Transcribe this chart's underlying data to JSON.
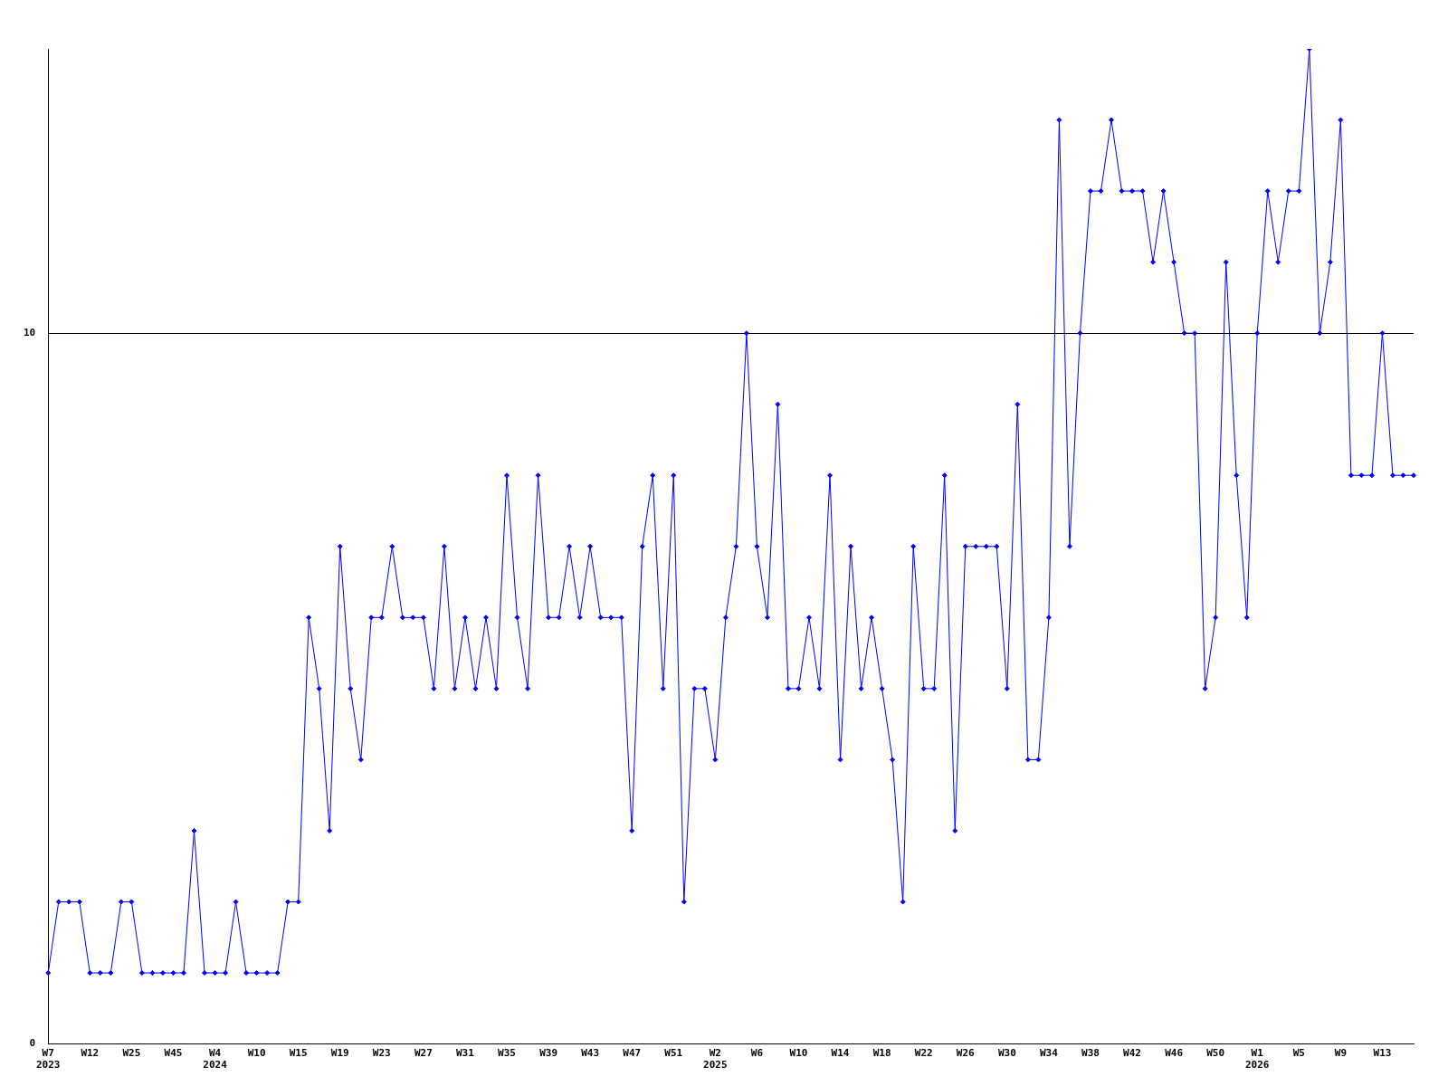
{
  "chart_data": {
    "type": "line",
    "categories": [
      "W7\n2023",
      null,
      null,
      null,
      "W12",
      null,
      null,
      null,
      "W25",
      null,
      null,
      null,
      "W45",
      null,
      null,
      null,
      "W4\n2024",
      null,
      null,
      null,
      "W10",
      null,
      null,
      null,
      "W15",
      null,
      null,
      null,
      "W19",
      null,
      null,
      null,
      "W23",
      null,
      null,
      null,
      "W27",
      null,
      null,
      null,
      "W31",
      null,
      null,
      null,
      "W35",
      null,
      null,
      null,
      "W39",
      null,
      null,
      null,
      "W43",
      null,
      null,
      null,
      "W47",
      null,
      null,
      null,
      "W51",
      null,
      null,
      null,
      "W2\n2025",
      null,
      null,
      null,
      "W6",
      null,
      null,
      null,
      "W10",
      null,
      null,
      null,
      "W14",
      null,
      null,
      null,
      "W18",
      null,
      null,
      null,
      "W22",
      null,
      null,
      null,
      "W26",
      null,
      null,
      null,
      "W30",
      null,
      null,
      null,
      "W34",
      null,
      null,
      null,
      "W38",
      null,
      null,
      null,
      "W42",
      null,
      null,
      null,
      "W46",
      null,
      null,
      null,
      "W50",
      null,
      null,
      null,
      "W1\n2026",
      null,
      null,
      null,
      "W5",
      null,
      null,
      null,
      "W9",
      null,
      null,
      null,
      "W13",
      null,
      null,
      null
    ],
    "series": [
      {
        "color": "#0000ff",
        "values": [
          1,
          2,
          2,
          2,
          1,
          1,
          1,
          2,
          2,
          1,
          1,
          1,
          1,
          1,
          3,
          1,
          1,
          1,
          2,
          1,
          1,
          1,
          1,
          2,
          2,
          6,
          5,
          3,
          7,
          5,
          4,
          6,
          6,
          7,
          6,
          6,
          6,
          5,
          7,
          5,
          6,
          5,
          6,
          5,
          8,
          6,
          5,
          8,
          6,
          6,
          7,
          6,
          7,
          6,
          6,
          6,
          3,
          7,
          8,
          5,
          8,
          2,
          5,
          5,
          4,
          6,
          7,
          10,
          7,
          6,
          9,
          5,
          5,
          6,
          5,
          8,
          4,
          7,
          5,
          6,
          5,
          4,
          2,
          7,
          5,
          5,
          8,
          3,
          7,
          7,
          7,
          7,
          5,
          9,
          4,
          4,
          6,
          13,
          7,
          10,
          12,
          12,
          13,
          12,
          12,
          12,
          11,
          12,
          11,
          10,
          10,
          5,
          6,
          11,
          8,
          6,
          10,
          12,
          11,
          12,
          12,
          14,
          10,
          11,
          13,
          8,
          8,
          8,
          10,
          8,
          8,
          8
        ]
      }
    ],
    "ylim": [
      0,
      14
    ],
    "yticks": [
      0,
      10
    ],
    "grid": "y",
    "marker": "diamond",
    "line_style": "solid",
    "legend": false
  }
}
